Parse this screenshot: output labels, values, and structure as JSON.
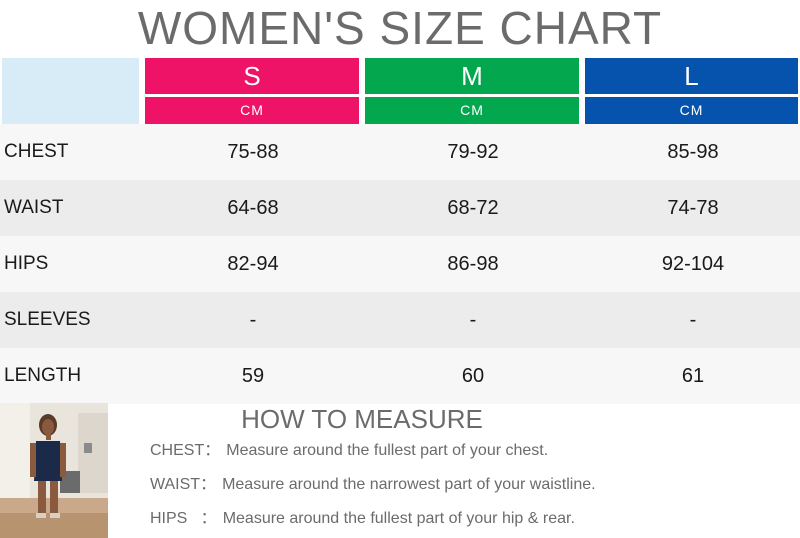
{
  "title": "WOMEN'S SIZE CHART",
  "sizes": [
    {
      "label": "S",
      "unit": "CM",
      "color": "#ee1366"
    },
    {
      "label": "M",
      "unit": "CM",
      "color": "#03a84e"
    },
    {
      "label": "L",
      "unit": "CM",
      "color": "#0653ad"
    }
  ],
  "rows": [
    {
      "label": "CHEST",
      "values": [
        "75-88",
        "79-92",
        "85-98"
      ]
    },
    {
      "label": "WAIST",
      "values": [
        "64-68",
        "68-72",
        "74-78"
      ]
    },
    {
      "label": "HIPS",
      "values": [
        "82-94",
        "86-98",
        "92-104"
      ]
    },
    {
      "label": "SLEEVES",
      "values": [
        "-",
        "-",
        "-"
      ]
    },
    {
      "label": "LENGTH",
      "values": [
        "59",
        "60",
        "61"
      ]
    }
  ],
  "measure": {
    "title": "HOW TO MEASURE",
    "items": [
      {
        "key": "CHEST：",
        "text": "Measure around the fullest part of your chest."
      },
      {
        "key": "WAIST：",
        "text": "Measure around the narrowest part of your waistline."
      },
      {
        "key": "HIPS   ：",
        "text": "Measure around the fullest part of your hip & rear."
      }
    ]
  },
  "colors": {
    "row_light": "#f7f7f7",
    "row_dark": "#ececec",
    "corner": "#d7ecf6"
  }
}
